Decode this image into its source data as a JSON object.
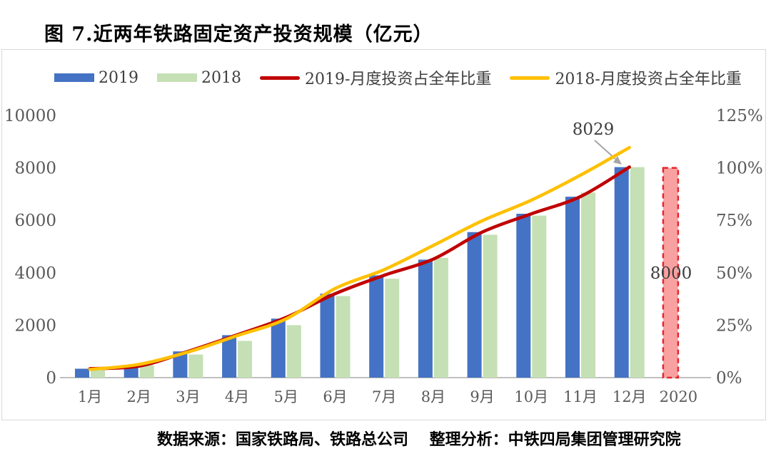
{
  "title": "图 7.近两年铁路固定资产投资规模（亿元）",
  "source_line": "数据来源：国家铁路局、铁路总公司　 整理分析：中铁四局集团管理研究院",
  "legend": [
    {
      "label": "2019",
      "type": "bar",
      "color": "#4472C4"
    },
    {
      "label": "2018",
      "type": "bar",
      "color": "#C5E0B4"
    },
    {
      "label": "2019-月度投资占全年比重",
      "type": "line",
      "color": "#C00000"
    },
    {
      "label": "2018-月度投资占全年比重",
      "type": "line",
      "color": "#FFC000"
    }
  ],
  "chart_data": {
    "type": "bar",
    "subtype": "grouped bars with two percentage lines (combo chart)",
    "title": "图 7.近两年铁路固定资产投资规模（亿元）",
    "categories": [
      "1月",
      "2月",
      "3月",
      "4月",
      "5月",
      "6月",
      "7月",
      "8月",
      "9月",
      "10月",
      "11月",
      "12月",
      "2020"
    ],
    "bar_series": [
      {
        "name": "2019",
        "color": "#4472C4",
        "values": [
          340,
          430,
          1000,
          1620,
          2250,
          3200,
          3900,
          4500,
          5550,
          6250,
          6900,
          8029
        ]
      },
      {
        "name": "2018",
        "color": "#C5E0B4",
        "values": [
          280,
          480,
          880,
          1400,
          2000,
          3110,
          3770,
          4570,
          5450,
          6180,
          7060,
          8028
        ]
      }
    ],
    "plan_bar_2020": {
      "category": "2020",
      "value": 8000,
      "fill": "#F9A1A1",
      "border": "#E8242B",
      "border_style": "dashed"
    },
    "line_series": [
      {
        "name": "2019-月度投资占全年比重",
        "color": "#C00000",
        "unit": "%",
        "values": [
          4.3,
          5.5,
          12.5,
          20.4,
          28.7,
          40.0,
          48.8,
          56.5,
          69.4,
          78.1,
          86.3,
          100.4
        ]
      },
      {
        "name": "2018-月度投资占全年比重",
        "color": "#FFC000",
        "unit": "%",
        "values": [
          3.9,
          6.3,
          12.2,
          20.0,
          28.0,
          42.5,
          51.5,
          63.0,
          74.8,
          84.6,
          96.5,
          109.7
        ]
      }
    ],
    "left_axis": {
      "ticks": [
        "0",
        "2000",
        "4000",
        "6000",
        "8000",
        "10000"
      ],
      "min": 0,
      "max": 10000
    },
    "right_axis": {
      "ticks": [
        "0%",
        "25%",
        "50%",
        "75%",
        "100%",
        "125%"
      ],
      "min": 0,
      "max": 125
    },
    "annotations": [
      {
        "text": "8029",
        "attached_to": "2019-12月",
        "leader": "gray arrow to top of Dec-2019 bar"
      },
      {
        "text": "8000",
        "attached_to": "2020",
        "position": "on dashed bar"
      }
    ],
    "grid": "none",
    "legend_position": "top"
  }
}
